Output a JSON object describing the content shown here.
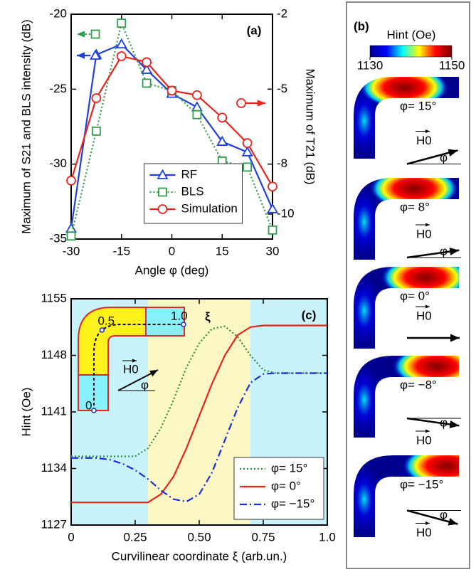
{
  "chart_data": [
    {
      "type": "line",
      "label": "(a)",
      "x_label": "Angle φ (deg)",
      "y_label": "Maximum of S21 and BLS intensity (dB)",
      "y2_label": "Maximum of T21 (dB)",
      "x": [
        -30,
        -22.5,
        -15,
        -7.5,
        0,
        7.5,
        15,
        22.5,
        30
      ],
      "xlim": [
        -30,
        30
      ],
      "xticks": [
        -30,
        -15,
        0,
        15,
        30
      ],
      "ylim": [
        -35,
        -20
      ],
      "yticks": [
        -35,
        -30,
        -25,
        -20
      ],
      "y2lim": [
        -11,
        -2
      ],
      "y2ticks": [
        -10,
        -8,
        -5,
        -2
      ],
      "legend": "lower center",
      "series": [
        {
          "name": "RF",
          "color": "#1f3fdc",
          "marker": "triangle",
          "dash": "solid",
          "arrow": "left",
          "values": [
            -34.3,
            -22.7,
            -22.0,
            -23.7,
            -25.3,
            -26.2,
            -28.5,
            -29.2,
            -33.0
          ]
        },
        {
          "name": "BLS",
          "color": "#2e9e4a",
          "marker": "square",
          "dash": "dotted",
          "arrow": "left",
          "values": [
            -34.8,
            -27.8,
            -20.6,
            -24.6,
            -25.1,
            -26.7,
            -29.8,
            -30.2,
            -34.4
          ]
        },
        {
          "name": "Simulation",
          "color": "#e8231c",
          "marker": "circle",
          "dash": "solid",
          "axis": "y2",
          "arrow": "right",
          "values": [
            -8.66,
            -5.36,
            -3.68,
            -3.92,
            -5.06,
            -5.24,
            -6.14,
            -7.16,
            -8.9
          ]
        }
      ]
    },
    {
      "type": "image",
      "label": "(b)",
      "colorbar": {
        "label": "Hint (Oe)",
        "clim": [
          1130,
          1150
        ],
        "ticks": [
          1130,
          1150
        ],
        "colors": [
          "#00008f",
          "#0000ff",
          "#00ffff",
          "#ffff00",
          "#ff0000",
          "#800000"
        ]
      },
      "panels": [
        {
          "label": "φ= 15°",
          "angle": 15,
          "field_label": "H0",
          "angle_label": "φ"
        },
        {
          "label": "φ= 8°",
          "angle": 8,
          "field_label": "H0",
          "angle_label": "φ"
        },
        {
          "label": "φ= 0°",
          "angle": 0,
          "field_label": "H0"
        },
        {
          "label": "φ= −8°",
          "angle": -8,
          "field_label": "H0",
          "angle_label": "φ"
        },
        {
          "label": "φ= −15°",
          "angle": -15,
          "field_label": "H0",
          "angle_label": "φ"
        }
      ]
    },
    {
      "type": "line",
      "label": "(c)",
      "x_label": "Curvilinear coordinate ξ (arb.un.)",
      "y_label": "Hint (Oe)",
      "x": [
        0,
        0.05,
        0.1,
        0.15,
        0.2,
        0.25,
        0.3,
        0.35,
        0.4,
        0.45,
        0.5,
        0.55,
        0.6,
        0.65,
        0.7,
        0.75,
        0.8,
        0.85,
        0.9,
        0.95,
        1.0
      ],
      "xlim": [
        0,
        1
      ],
      "xticks": [
        0,
        0.25,
        {
          "value": 0.5,
          "label": "0.50"
        },
        0.75,
        {
          "value": 1,
          "label": "1.0"
        }
      ],
      "ylim": [
        1127,
        1155
      ],
      "yticks": [
        1127,
        1134,
        1141,
        1148,
        1155
      ],
      "legend": "lower right",
      "bands": [
        {
          "x": [
            0,
            0.3
          ],
          "color": "#c9f3fa"
        },
        {
          "x": [
            0.3,
            0.7
          ],
          "color": "#fcf8c6"
        },
        {
          "x": [
            0.7,
            1
          ],
          "color": "#c9f3fa"
        }
      ],
      "series": [
        {
          "name": "φ= 15°",
          "color": "#2e8b3a",
          "dash": "dotted",
          "values": [
            1135.5,
            1135.5,
            1135.5,
            1135.5,
            1135.5,
            1135.5,
            1136.5,
            1139,
            1142.5,
            1146.5,
            1149.5,
            1151.3,
            1151.6,
            1150.3,
            1148,
            1146.2,
            1145.8,
            1145.8,
            1145.8,
            1145.8,
            1145.8
          ]
        },
        {
          "name": "φ= 0°",
          "color": "#e8231c",
          "dash": "solid",
          "values": [
            1129.8,
            1129.8,
            1129.8,
            1129.8,
            1129.8,
            1129.8,
            1129.8,
            1130.8,
            1133,
            1136.5,
            1140.5,
            1144.5,
            1148,
            1150.5,
            1151.5,
            1151.7,
            1151.7,
            1151.7,
            1151.7,
            1151.7,
            1151.7
          ]
        },
        {
          "name": "φ= −15°",
          "color": "#1a2fd6",
          "dash": "dashdot",
          "values": [
            1135.3,
            1135.3,
            1135.3,
            1135.1,
            1134.6,
            1133.8,
            1132.7,
            1131.3,
            1130.2,
            1129.9,
            1130.8,
            1133.5,
            1137.5,
            1141.5,
            1144.6,
            1145.7,
            1145.8,
            1145.8,
            1145.8,
            1145.8,
            1145.8
          ]
        }
      ],
      "inset": {
        "ticks": [
          {
            "value": 0,
            "label": "0"
          },
          {
            "value": 0.5,
            "label": "0.5"
          },
          {
            "value": 1,
            "label": "1.0"
          }
        ],
        "axis_label": "ξ",
        "field_label": "H0",
        "angle_label": "φ"
      }
    }
  ]
}
